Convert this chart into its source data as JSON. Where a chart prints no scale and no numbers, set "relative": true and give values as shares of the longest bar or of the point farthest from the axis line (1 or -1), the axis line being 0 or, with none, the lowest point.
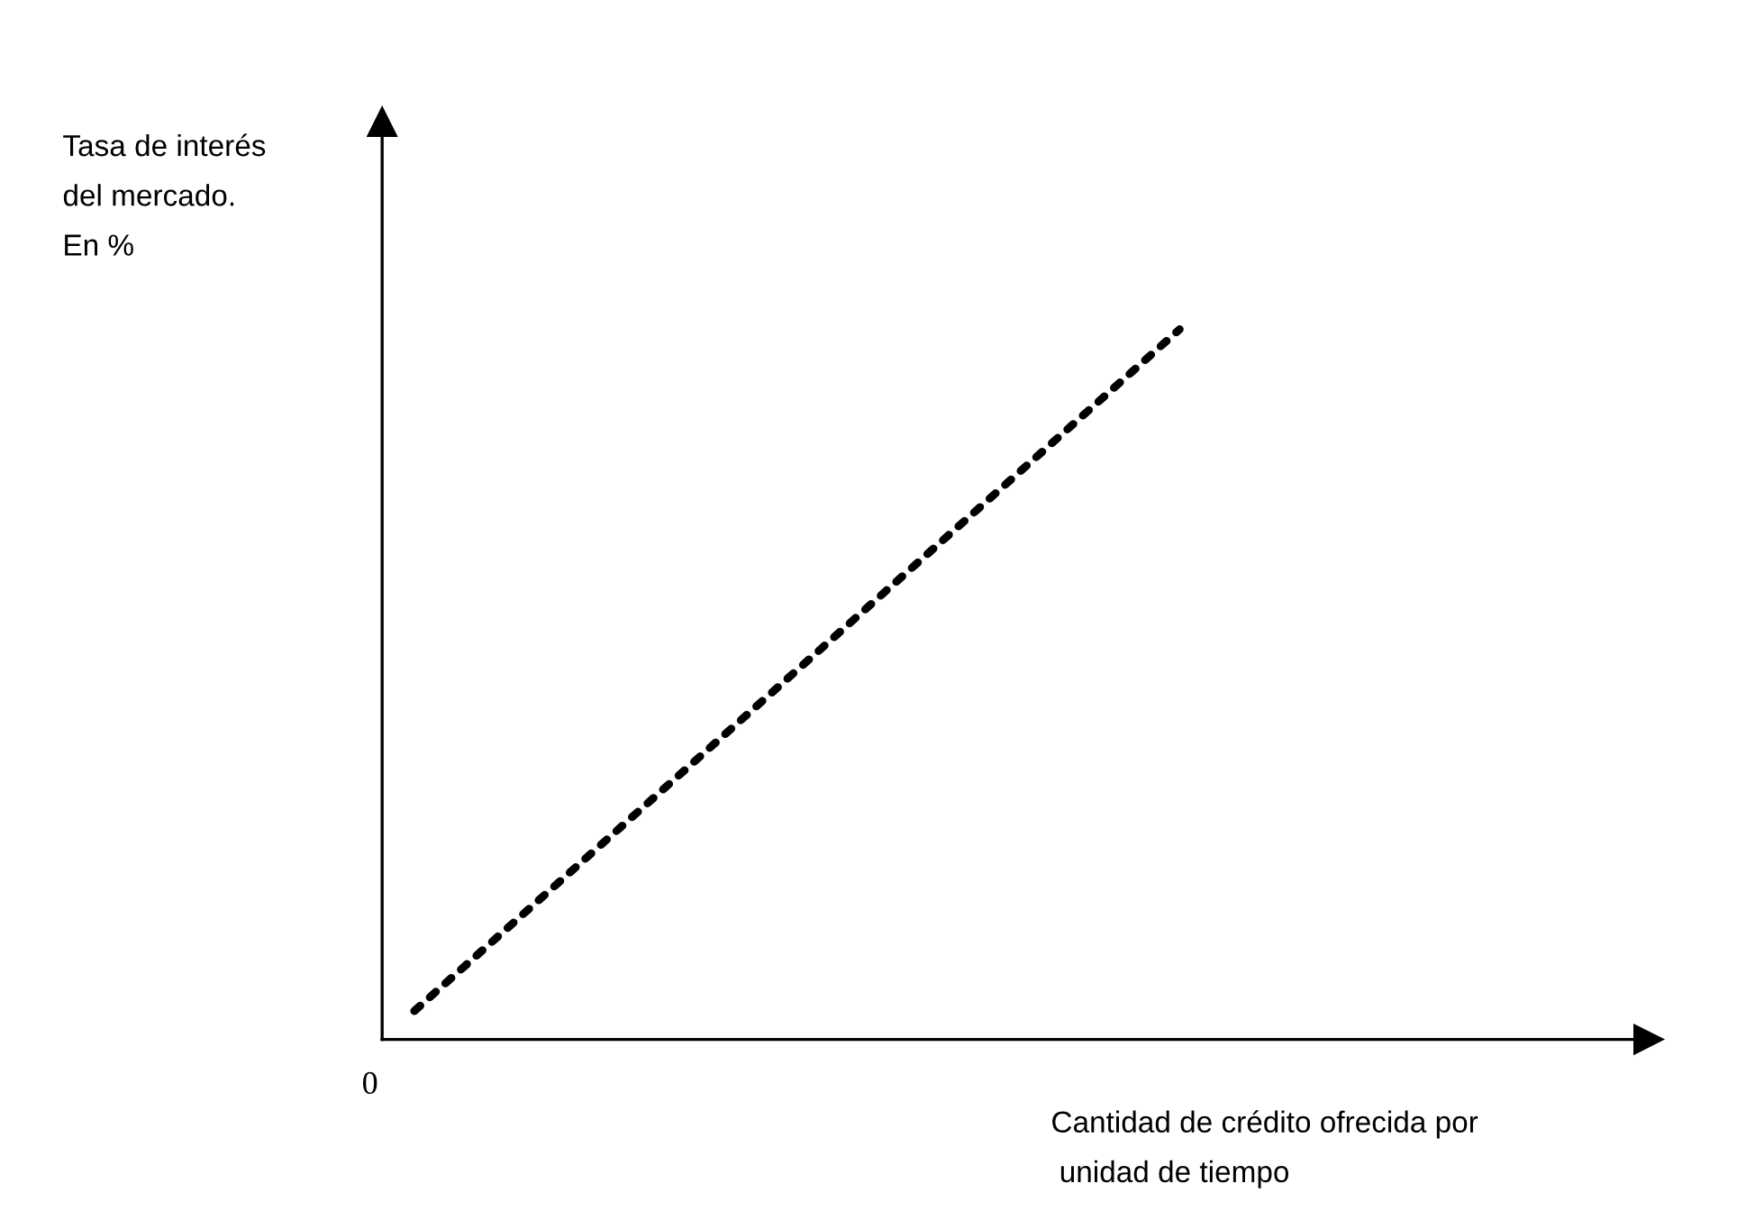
{
  "chart_data": {
    "type": "line",
    "relative": true,
    "categories": [
      null,
      null
    ],
    "series": [
      {
        "color": "#000000",
        "values": [
          0.04,
          1
        ]
      }
    ],
    "line_style": "dotted",
    "marker": "none",
    "grid": false,
    "legend": false,
    "ylabel": "Tasa de interés\ndel mercado.\nEn %",
    "xlabel": "Cantidad de crédito ofrecida por\n unidad de tiempo",
    "annotations": [
      "0"
    ]
  }
}
